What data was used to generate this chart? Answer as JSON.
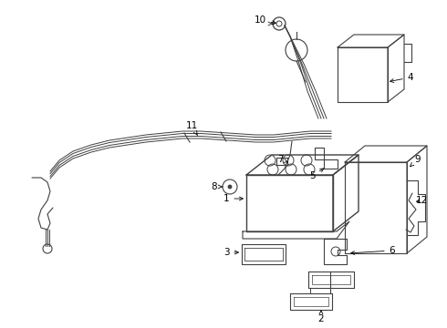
{
  "bg_color": "#ffffff",
  "line_color": "#404040",
  "lw": 0.8,
  "fig_width": 4.9,
  "fig_height": 3.6,
  "dpi": 100
}
